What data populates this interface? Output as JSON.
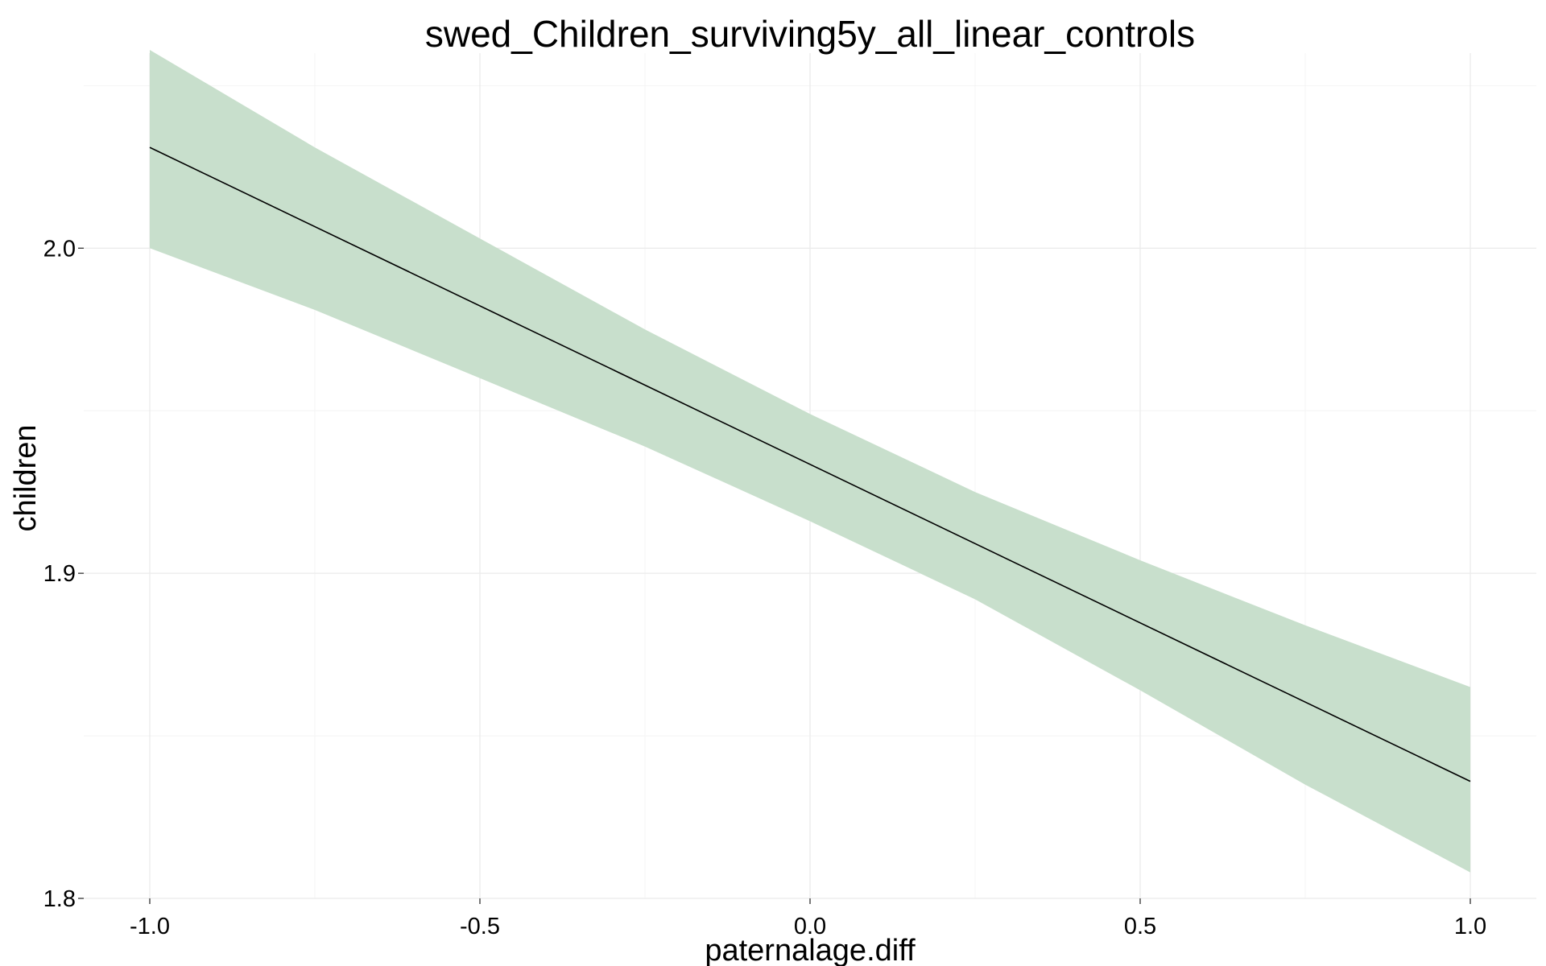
{
  "chart_data": {
    "type": "line",
    "title": "swed_Children_surviving5y_all_linear_controls",
    "xlabel": "paternalage.diff",
    "ylabel": "children",
    "xlim": [
      -1.1,
      1.1
    ],
    "ylim": [
      1.8,
      2.06
    ],
    "x_ticks": [
      -1.0,
      -0.5,
      0.0,
      0.5,
      1.0
    ],
    "x_tick_labels": [
      "-1.0",
      "-0.5",
      "0.0",
      "0.5",
      "1.0"
    ],
    "y_ticks": [
      1.8,
      1.9,
      2.0
    ],
    "y_tick_labels": [
      "1.8",
      "1.9",
      "2.0"
    ],
    "grid": true,
    "series": [
      {
        "x": [
          -1.0,
          1.0
        ],
        "y": [
          2.031,
          1.836
        ],
        "color": "#000000"
      }
    ],
    "ribbon": {
      "x": [
        -1.0,
        -0.75,
        -0.5,
        -0.25,
        0.0,
        0.25,
        0.5,
        0.75,
        1.0
      ],
      "lower": [
        2.0,
        1.981,
        1.96,
        1.939,
        1.916,
        1.892,
        1.864,
        1.835,
        1.808
      ],
      "upper": [
        2.061,
        2.031,
        2.003,
        1.975,
        1.949,
        1.925,
        1.904,
        1.884,
        1.865
      ],
      "color": "#c8dfcc"
    }
  }
}
